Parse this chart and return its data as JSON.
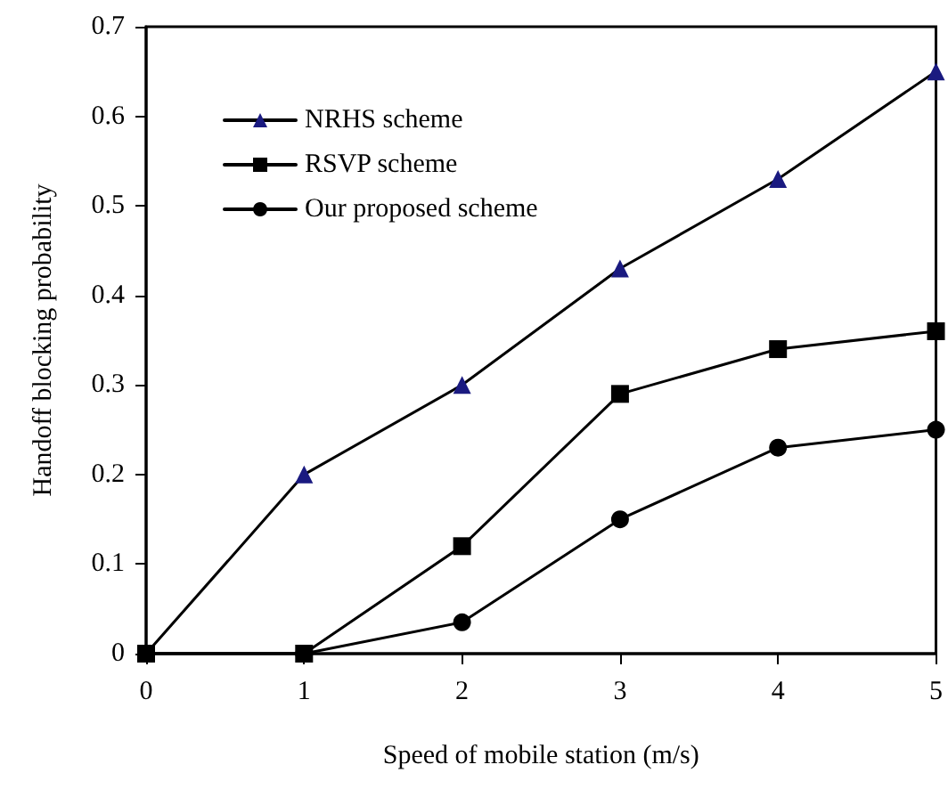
{
  "chart_data": {
    "type": "line",
    "xlabel": "Speed of mobile station (m/s)",
    "ylabel": "Handoff blocking probability",
    "x": [
      0,
      1,
      2,
      3,
      4,
      5
    ],
    "series": [
      {
        "name": "NRHS scheme",
        "color": "#1a1a80",
        "marker": "triangle",
        "values": [
          0,
          0.2,
          0.3,
          0.43,
          0.53,
          0.65
        ]
      },
      {
        "name": "RSVP scheme",
        "color": "#000000",
        "marker": "square",
        "values": [
          0,
          0,
          0.12,
          0.29,
          0.34,
          0.36
        ]
      },
      {
        "name": "Our proposed scheme",
        "color": "#000000",
        "marker": "circle",
        "values": [
          0,
          0,
          0.035,
          0.15,
          0.23,
          0.25
        ]
      }
    ],
    "xlim": [
      0,
      5
    ],
    "xticks": [
      0,
      1,
      2,
      3,
      4,
      5
    ],
    "ylim": [
      0,
      0.7
    ],
    "yticks": [
      0,
      0.1,
      0.2,
      0.3,
      0.4,
      0.5,
      0.6,
      0.7
    ],
    "grid": false,
    "legend": "top left",
    "line_style": "solid"
  }
}
